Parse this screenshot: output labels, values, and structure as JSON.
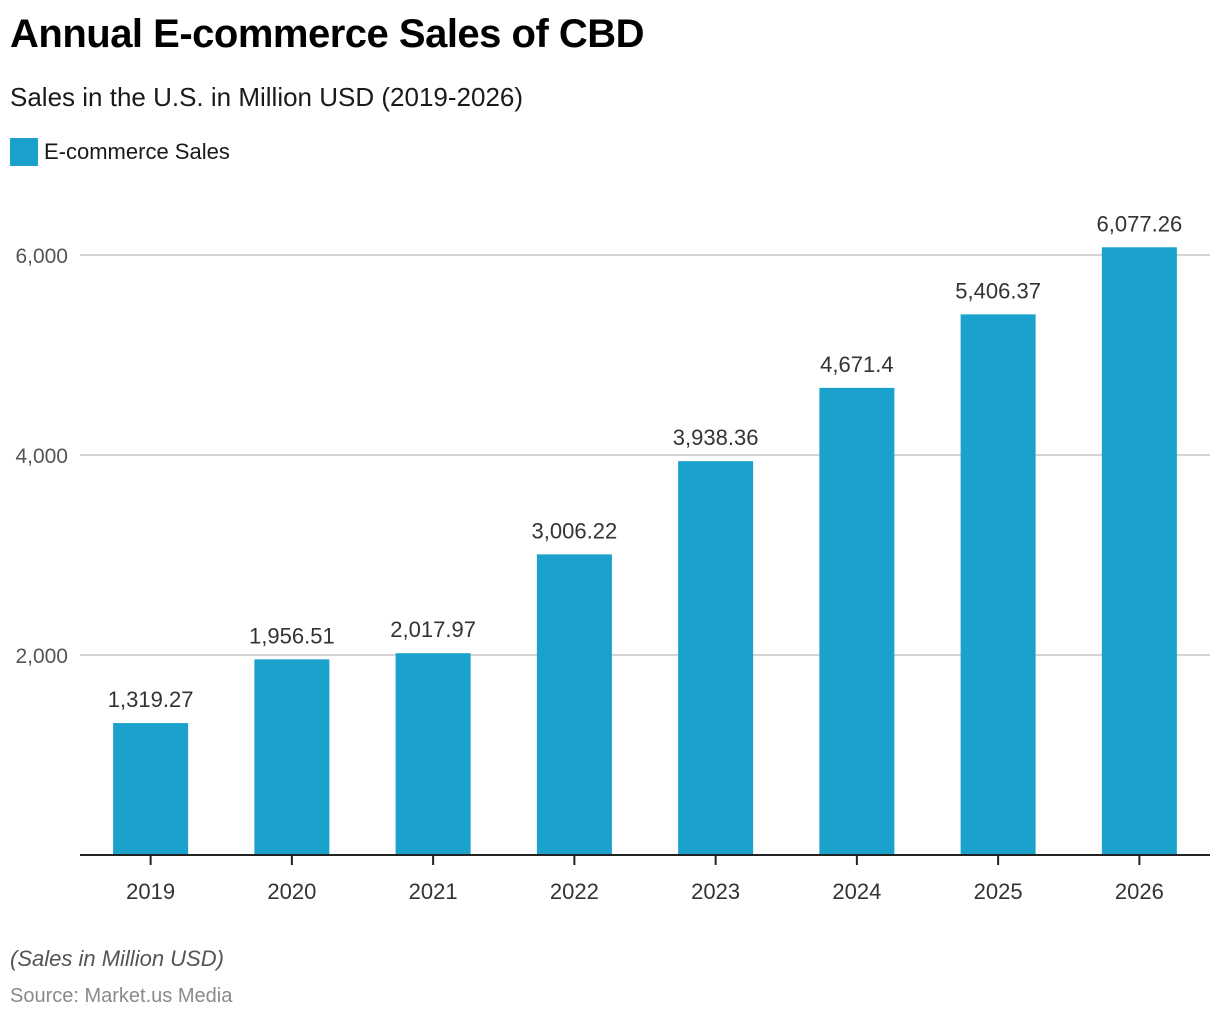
{
  "header": {
    "title": "Annual E-commerce Sales of CBD",
    "subtitle": "Sales in the U.S. in Million USD (2019-2026)"
  },
  "legend": {
    "items": [
      {
        "label": "E-commerce Sales",
        "color": "#1aa1cc"
      }
    ]
  },
  "footer": {
    "note": "(Sales in Million USD)",
    "source": "Source: Market.us Media"
  },
  "chart_data": {
    "type": "bar",
    "title": "Annual E-commerce Sales of CBD",
    "subtitle": "Sales in the U.S. in Million USD (2019-2026)",
    "xlabel": "",
    "ylabel": "",
    "categories": [
      "2019",
      "2020",
      "2021",
      "2022",
      "2023",
      "2024",
      "2025",
      "2026"
    ],
    "series": [
      {
        "name": "E-commerce Sales",
        "color": "#1aa1cc",
        "values": [
          1319.27,
          1956.51,
          2017.97,
          3006.22,
          3938.36,
          4671.4,
          5406.37,
          6077.26
        ],
        "labels": [
          "1,319.27",
          "1,956.51",
          "2,017.97",
          "3,006.22",
          "3,938.36",
          "4,671.4",
          "5,406.37",
          "6,077.26"
        ]
      }
    ],
    "ylim": [
      0,
      6000
    ],
    "yticks": [
      2000,
      4000,
      6000
    ],
    "ytick_labels": [
      "2,000",
      "4,000",
      "6,000"
    ],
    "grid": true,
    "legend_position": "top-left"
  }
}
